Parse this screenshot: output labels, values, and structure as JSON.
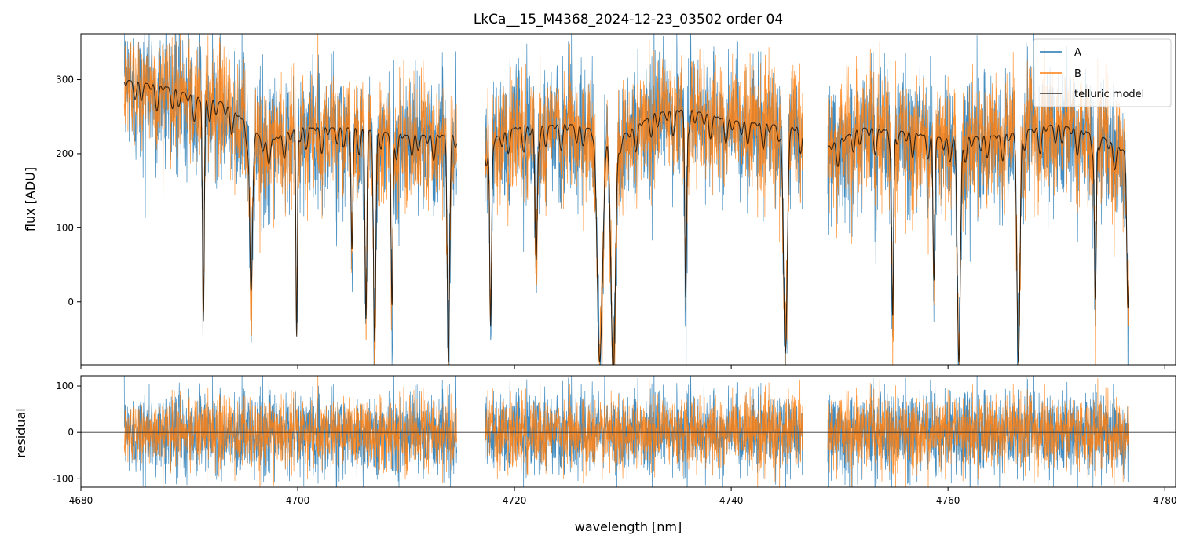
{
  "chart_data": [
    {
      "type": "line",
      "title": "LkCa__15_M4368_2024-12-23_03502  order 04",
      "xlabel": "",
      "ylabel": "flux [ADU]",
      "xlim": [
        4680,
        4781
      ],
      "ylim": [
        -85,
        362
      ],
      "yticks": [
        0,
        100,
        200,
        300
      ],
      "xticks": [
        4680,
        4700,
        4720,
        4740,
        4760,
        4780
      ],
      "grid": false,
      "legend": "top-right",
      "segments": [
        [
          4684.0,
          4714.7
        ],
        [
          4717.3,
          4746.6
        ],
        [
          4748.9,
          4776.7
        ]
      ],
      "series": [
        {
          "name": "A",
          "color": "#1f77b4",
          "noise": 45
        },
        {
          "name": "B",
          "color": "#ff7f0e",
          "noise": 40
        },
        {
          "name": "telluric model",
          "color": "#000000"
        }
      ],
      "continuum": {
        "x": [
          4684,
          4688,
          4691,
          4693,
          4695.5,
          4697,
          4700,
          4705,
          4710,
          4714.7,
          4717.3,
          4720,
          4725,
          4730,
          4733,
          4736,
          4740,
          4746.6,
          4748.9,
          4752,
          4756,
          4760,
          4765,
          4770,
          4774,
          4776.7
        ],
        "y": [
          300,
          290,
          275,
          270,
          240,
          215,
          235,
          235,
          225,
          225,
          215,
          235,
          240,
          225,
          255,
          260,
          245,
          235,
          210,
          235,
          230,
          220,
          225,
          240,
          225,
          200
        ]
      },
      "absorption_lines": [
        {
          "x": 4691.3,
          "depth": 300,
          "width": 0.12
        },
        {
          "x": 4695.7,
          "depth": 220,
          "width": 0.18
        },
        {
          "x": 4699.9,
          "depth": 280,
          "width": 0.1
        },
        {
          "x": 4705.0,
          "depth": 160,
          "width": 0.12
        },
        {
          "x": 4706.3,
          "depth": 250,
          "width": 0.12
        },
        {
          "x": 4707.1,
          "depth": 260,
          "width": 0.15
        },
        {
          "x": 4708.7,
          "depth": 230,
          "width": 0.12
        },
        {
          "x": 4713.9,
          "depth": 280,
          "width": 0.15
        },
        {
          "x": 4717.8,
          "depth": 250,
          "width": 0.12
        },
        {
          "x": 4722.0,
          "depth": 180,
          "width": 0.15
        },
        {
          "x": 4727.9,
          "depth": 290,
          "width": 0.35
        },
        {
          "x": 4729.1,
          "depth": 300,
          "width": 0.3
        },
        {
          "x": 4735.8,
          "depth": 250,
          "width": 0.12
        },
        {
          "x": 4745.0,
          "depth": 280,
          "width": 0.25
        },
        {
          "x": 4754.9,
          "depth": 240,
          "width": 0.12
        },
        {
          "x": 4758.7,
          "depth": 180,
          "width": 0.12
        },
        {
          "x": 4761.0,
          "depth": 300,
          "width": 0.2
        },
        {
          "x": 4766.5,
          "depth": 290,
          "width": 0.2
        },
        {
          "x": 4773.6,
          "depth": 220,
          "width": 0.12
        },
        {
          "x": 4776.6,
          "depth": 200,
          "width": 0.15
        }
      ]
    },
    {
      "type": "line",
      "title": "",
      "xlabel": "wavelength [nm]",
      "ylabel": "residual",
      "xlim": [
        4680,
        4781
      ],
      "ylim": [
        -118,
        122
      ],
      "yticks": [
        -100,
        0,
        100
      ],
      "xticks": [
        4680,
        4700,
        4720,
        4740,
        4760,
        4780
      ],
      "grid": false,
      "series": [
        {
          "name": "A",
          "color": "#1f77b4",
          "noise": 45
        },
        {
          "name": "B",
          "color": "#ff7f0e",
          "noise": 38
        }
      ],
      "zero_line": 0
    }
  ],
  "legend": {
    "items": [
      {
        "label": "A",
        "color": "#1f77b4"
      },
      {
        "label": "B",
        "color": "#ff7f0e"
      },
      {
        "label": "telluric model",
        "color": "#333333"
      }
    ]
  }
}
